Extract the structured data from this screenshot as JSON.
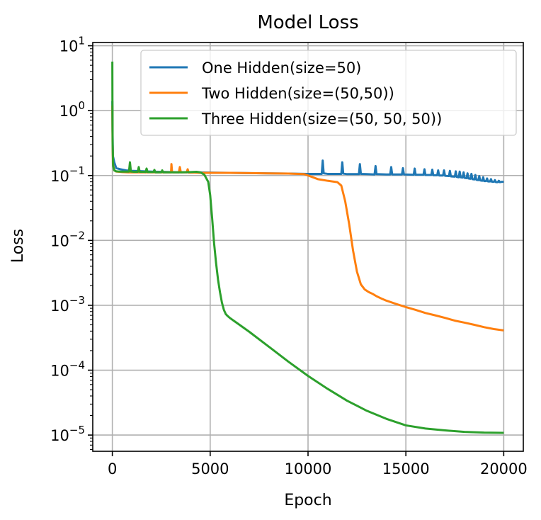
{
  "chart_data": {
    "type": "line",
    "title": "Model Loss",
    "xlabel": "Epoch",
    "ylabel": "Loss",
    "yscale": "log",
    "xlim": [
      -1000,
      21000
    ],
    "ylim_exp": [
      -5.25,
      1.05
    ],
    "xticks": [
      0,
      5000,
      10000,
      15000,
      20000
    ],
    "xtick_labels": [
      "0",
      "5000",
      "10000",
      "15000",
      "20000"
    ],
    "ytick_exponents": [
      1,
      0,
      -1,
      -2,
      -3,
      -4,
      -5
    ],
    "ytick_base": "10",
    "ytick_superscripts": [
      "1",
      "0",
      "−1",
      "−2",
      "−3",
      "−4",
      "−5"
    ],
    "grid": true,
    "legend_position": "upper-right",
    "series": [
      {
        "name": "One Hidden(size=50)",
        "color": "#1f77b4",
        "x": [
          0,
          10,
          30,
          100,
          200,
          400,
          700,
          1000,
          2000,
          3000,
          4000,
          5000,
          6000,
          7000,
          8000,
          9000,
          10000,
          10500,
          10700,
          10750,
          10800,
          11000,
          11700,
          11750,
          11800,
          12000,
          12600,
          12650,
          12700,
          13000,
          13400,
          13450,
          13500,
          14000,
          14200,
          14250,
          14300,
          14800,
          14850,
          14900,
          15400,
          15450,
          15500,
          15900,
          15950,
          16000,
          16300,
          16350,
          16400,
          16600,
          16650,
          16700,
          16900,
          16950,
          17000,
          17200,
          17250,
          17300,
          17500,
          17550,
          17600,
          17700,
          17750,
          17800,
          17900,
          17950,
          18000,
          18100,
          18150,
          18200,
          18300,
          18350,
          18400,
          18500,
          18550,
          18600,
          18700,
          18750,
          18800,
          18900,
          18950,
          19000,
          19100,
          19150,
          19200,
          19300,
          19350,
          19400,
          19500,
          19550,
          19600,
          19700,
          19750,
          19800,
          19900,
          20000
        ],
        "y": [
          1.4,
          0.5,
          0.2,
          0.16,
          0.13,
          0.125,
          0.12,
          0.118,
          0.115,
          0.113,
          0.112,
          0.111,
          0.11,
          0.109,
          0.108,
          0.107,
          0.106,
          0.106,
          0.106,
          0.17,
          0.108,
          0.106,
          0.106,
          0.16,
          0.107,
          0.105,
          0.105,
          0.15,
          0.106,
          0.105,
          0.104,
          0.14,
          0.105,
          0.104,
          0.104,
          0.135,
          0.104,
          0.104,
          0.13,
          0.104,
          0.103,
          0.128,
          0.103,
          0.103,
          0.125,
          0.102,
          0.102,
          0.123,
          0.101,
          0.101,
          0.12,
          0.1,
          0.1,
          0.12,
          0.099,
          0.098,
          0.118,
          0.097,
          0.096,
          0.116,
          0.095,
          0.094,
          0.115,
          0.094,
          0.093,
          0.112,
          0.092,
          0.091,
          0.108,
          0.09,
          0.089,
          0.106,
          0.088,
          0.087,
          0.102,
          0.086,
          0.085,
          0.098,
          0.084,
          0.083,
          0.094,
          0.082,
          0.082,
          0.09,
          0.081,
          0.081,
          0.088,
          0.08,
          0.08,
          0.085,
          0.079,
          0.079,
          0.083,
          0.079,
          0.08,
          0.08
        ]
      },
      {
        "name": "Two Hidden(size=(50,50))",
        "color": "#ff7f0e",
        "x": [
          0,
          10,
          30,
          100,
          200,
          500,
          800,
          1000,
          1500,
          2000,
          2500,
          3000,
          3020,
          3050,
          3100,
          3400,
          3450,
          3500,
          3800,
          3850,
          3900,
          4200,
          4500,
          5000,
          6000,
          7000,
          8000,
          9000,
          9500,
          9800,
          10000,
          10500,
          11000,
          11500,
          11700,
          11900,
          12100,
          12300,
          12500,
          12700,
          12900,
          13100,
          13300,
          13500,
          13800,
          14000,
          14500,
          15000,
          15500,
          16000,
          16500,
          17000,
          17500,
          18000,
          18500,
          19000,
          19500,
          20000
        ],
        "y": [
          1.2,
          0.35,
          0.15,
          0.12,
          0.115,
          0.113,
          0.112,
          0.112,
          0.112,
          0.112,
          0.112,
          0.112,
          0.15,
          0.115,
          0.112,
          0.112,
          0.135,
          0.112,
          0.112,
          0.125,
          0.111,
          0.111,
          0.11,
          0.11,
          0.11,
          0.109,
          0.108,
          0.107,
          0.106,
          0.105,
          0.1,
          0.088,
          0.083,
          0.079,
          0.07,
          0.04,
          0.018,
          0.007,
          0.0033,
          0.0021,
          0.00175,
          0.0016,
          0.0015,
          0.00138,
          0.00125,
          0.00118,
          0.00105,
          0.00094,
          0.00085,
          0.00076,
          0.0007,
          0.00064,
          0.00058,
          0.00054,
          0.0005,
          0.00046,
          0.00043,
          0.00041
        ]
      },
      {
        "name": "Three Hidden(size=(50, 50, 50))",
        "color": "#2ca02c",
        "x": [
          0,
          5,
          15,
          40,
          100,
          200,
          400,
          600,
          850,
          900,
          950,
          1100,
          1300,
          1350,
          1400,
          1600,
          1700,
          1750,
          1800,
          2000,
          2100,
          2150,
          2200,
          2400,
          2500,
          2550,
          2600,
          2800,
          3000,
          3500,
          4000,
          4300,
          4500,
          4700,
          4900,
          5000,
          5100,
          5200,
          5300,
          5400,
          5500,
          5600,
          5700,
          5800,
          5900,
          6000,
          6200,
          6500,
          7000,
          8000,
          9000,
          10000,
          11000,
          12000,
          13000,
          14000,
          15000,
          16000,
          17000,
          18000,
          19000,
          20000
        ],
        "y": [
          5.7,
          1.5,
          0.3,
          0.14,
          0.12,
          0.116,
          0.115,
          0.115,
          0.115,
          0.16,
          0.115,
          0.114,
          0.114,
          0.135,
          0.114,
          0.114,
          0.113,
          0.128,
          0.113,
          0.113,
          0.113,
          0.122,
          0.112,
          0.112,
          0.112,
          0.12,
          0.112,
          0.112,
          0.112,
          0.112,
          0.113,
          0.114,
          0.112,
          0.103,
          0.08,
          0.05,
          0.022,
          0.009,
          0.0045,
          0.0025,
          0.0016,
          0.0011,
          0.00085,
          0.00073,
          0.00068,
          0.00064,
          0.00058,
          0.0005,
          0.00039,
          0.00023,
          0.000135,
          8.15e-05,
          5.16e-05,
          3.38e-05,
          2.37e-05,
          1.78e-05,
          1.41e-05,
          1.26e-05,
          1.18e-05,
          1.12e-05,
          1.09e-05,
          1.08e-05
        ]
      }
    ]
  }
}
